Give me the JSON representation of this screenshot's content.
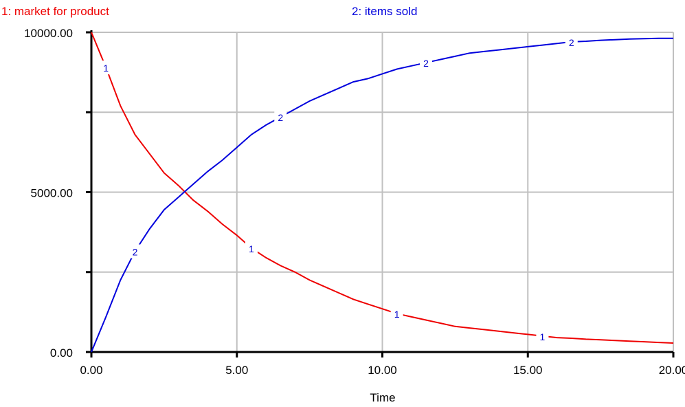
{
  "chart_data": {
    "type": "line",
    "title": "",
    "xlabel": "Time",
    "ylabel": "",
    "xlim": [
      0,
      20
    ],
    "ylim": [
      0,
      10000
    ],
    "grid": true,
    "legend_placement": "top",
    "x_ticks": [
      0,
      5,
      10,
      15,
      20
    ],
    "x_tick_labels": [
      "0.00",
      "5.00",
      "10.00",
      "15.00",
      "20.00"
    ],
    "y_tick_labels_shown": [
      {
        "value": 0,
        "label": "0.00"
      },
      {
        "value": 5000,
        "label": "5000.00"
      },
      {
        "value": 10000,
        "label": "10000.00"
      }
    ],
    "y_minor_ticks": [
      2500,
      7500
    ],
    "x": [
      0,
      0.5,
      1,
      1.5,
      2,
      2.5,
      3,
      3.5,
      4,
      4.5,
      5,
      5.5,
      6,
      6.5,
      7,
      7.5,
      8,
      8.5,
      9,
      9.5,
      10,
      10.5,
      11,
      11.5,
      12,
      12.5,
      13,
      13.5,
      14,
      14.5,
      15,
      15.5,
      16,
      16.5,
      17,
      17.5,
      18,
      18.5,
      19,
      19.5,
      20
    ],
    "series": [
      {
        "name": "1: market for product",
        "marker_label": "1",
        "color": "#ee0000",
        "values": [
          10000,
          8900,
          7700,
          6800,
          6200,
          5600,
          5200,
          4750,
          4400,
          4000,
          3650,
          3250,
          2950,
          2700,
          2500,
          2250,
          2050,
          1850,
          1650,
          1500,
          1350,
          1200,
          1100,
          1000,
          900,
          800,
          750,
          700,
          650,
          600,
          550,
          500,
          450,
          430,
          400,
          380,
          360,
          340,
          320,
          300,
          280
        ]
      },
      {
        "name": "2: items sold",
        "marker_label": "2",
        "color": "#0000dd",
        "values": [
          0,
          1100,
          2250,
          3150,
          3850,
          4450,
          4850,
          5250,
          5650,
          6000,
          6400,
          6800,
          7100,
          7350,
          7600,
          7850,
          8050,
          8250,
          8450,
          8550,
          8700,
          8850,
          8950,
          9050,
          9150,
          9250,
          9350,
          9400,
          9450,
          9500,
          9550,
          9600,
          9650,
          9700,
          9720,
          9750,
          9770,
          9790,
          9800,
          9810,
          9810
        ]
      }
    ],
    "markers": [
      {
        "series": 0,
        "x": 0.5
      },
      {
        "series": 0,
        "x": 5.5
      },
      {
        "series": 0,
        "x": 10.5
      },
      {
        "series": 0,
        "x": 15.5
      },
      {
        "series": 1,
        "x": 1.5
      },
      {
        "series": 1,
        "x": 6.5
      },
      {
        "series": 1,
        "x": 11.5
      },
      {
        "series": 1,
        "x": 16.5
      }
    ]
  }
}
